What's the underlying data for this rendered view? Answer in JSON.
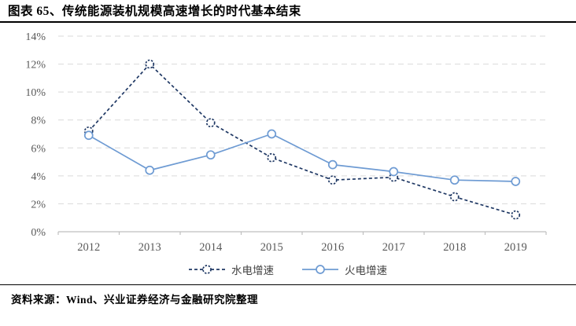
{
  "title": "图表 65、传统能源装机规模高速增长的时代基本结束",
  "source": "资料来源：Wind、兴业证券经济与金融研究院整理",
  "colors": {
    "hydro_series": "#1F3864",
    "thermal_series": "#6E9BD3",
    "gridline": "#D9D9D9",
    "axis_line": "#BFBFBF",
    "tick_label": "#595959",
    "title_text": "#000000",
    "rule_line": "#000000"
  },
  "chart_data": {
    "type": "line",
    "title": "图表 65、传统能源装机规模高速增长的时代基本结束",
    "x": [
      "2012",
      "2013",
      "2014",
      "2015",
      "2016",
      "2017",
      "2018",
      "2019"
    ],
    "series": [
      {
        "name": "水电增速",
        "values": [
          7.2,
          12.0,
          7.8,
          5.3,
          3.7,
          3.9,
          2.5,
          1.2
        ],
        "color": "#1F3864",
        "style": "dashed",
        "marker": "open-circle"
      },
      {
        "name": "火电增速",
        "values": [
          6.9,
          4.4,
          5.5,
          7.0,
          4.8,
          4.3,
          3.7,
          3.6
        ],
        "color": "#6E9BD3",
        "style": "solid",
        "marker": "open-circle"
      }
    ],
    "xlabel": "",
    "ylabel": "",
    "ylim": [
      0,
      14
    ],
    "ytick_step": 2,
    "ytick_suffix": "%",
    "grid": "horizontal-dashed",
    "legend_position": "bottom"
  }
}
